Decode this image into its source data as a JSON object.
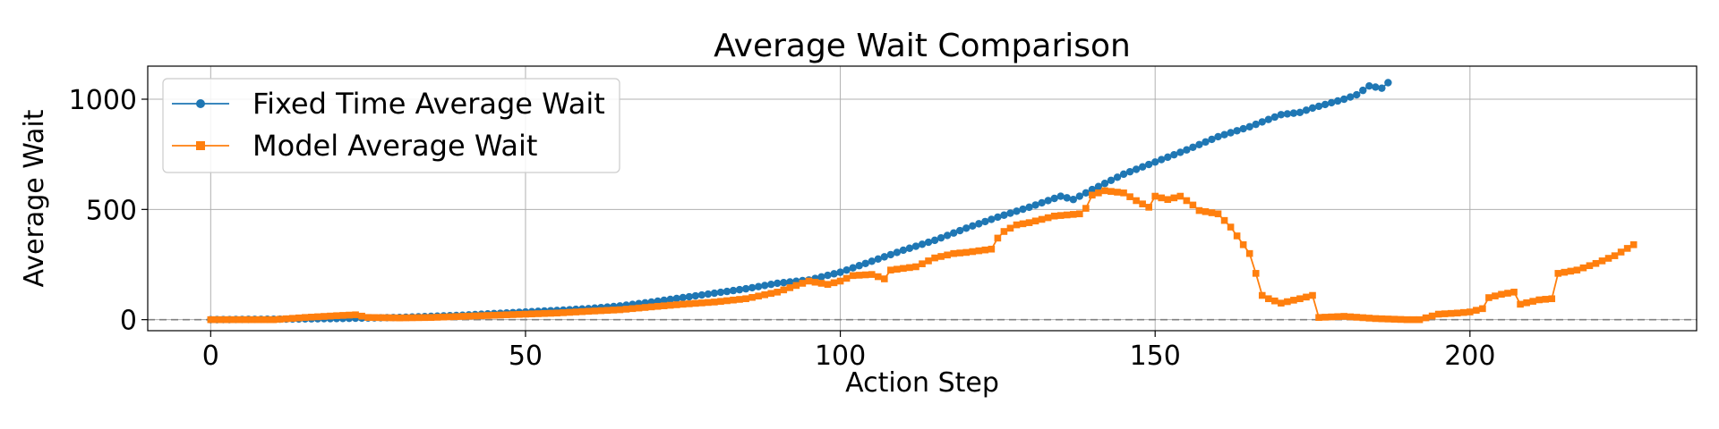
{
  "chart_data": {
    "type": "line",
    "title": "Average Wait Comparison",
    "xlabel": "Action Step",
    "ylabel": "Average Wait",
    "xlim": [
      -10,
      236
    ],
    "ylim": [
      -50,
      1150
    ],
    "xticks": [
      0,
      50,
      100,
      150,
      200
    ],
    "yticks": [
      0,
      500,
      1000
    ],
    "grid": true,
    "legend_position": "top-left",
    "reference_line": {
      "y": 0,
      "style": "dashed",
      "color": "#808080"
    },
    "series": [
      {
        "name": "Fixed Time Average Wait",
        "color": "#1f77b4",
        "marker": "circle",
        "anchors": [
          [
            0,
            0
          ],
          [
            10,
            2
          ],
          [
            20,
            5
          ],
          [
            30,
            10
          ],
          [
            40,
            20
          ],
          [
            50,
            35
          ],
          [
            55,
            42
          ],
          [
            60,
            50
          ],
          [
            65,
            62
          ],
          [
            70,
            80
          ],
          [
            75,
            100
          ],
          [
            80,
            120
          ],
          [
            85,
            140
          ],
          [
            90,
            165
          ],
          [
            95,
            180
          ],
          [
            100,
            215
          ],
          [
            105,
            265
          ],
          [
            110,
            315
          ],
          [
            115,
            360
          ],
          [
            120,
            415
          ],
          [
            125,
            465
          ],
          [
            130,
            510
          ],
          [
            135,
            560
          ],
          [
            137,
            545
          ],
          [
            140,
            590
          ],
          [
            145,
            660
          ],
          [
            150,
            715
          ],
          [
            155,
            770
          ],
          [
            160,
            830
          ],
          [
            165,
            875
          ],
          [
            170,
            930
          ],
          [
            173,
            940
          ],
          [
            175,
            960
          ],
          [
            180,
            1000
          ],
          [
            182,
            1020
          ],
          [
            184,
            1060
          ],
          [
            186,
            1050
          ],
          [
            187,
            1075
          ]
        ]
      },
      {
        "name": "Model Average Wait",
        "color": "#ff7f0e",
        "marker": "square",
        "anchors": [
          [
            0,
            0
          ],
          [
            10,
            0
          ],
          [
            15,
            10
          ],
          [
            20,
            18
          ],
          [
            23,
            22
          ],
          [
            25,
            10
          ],
          [
            30,
            8
          ],
          [
            35,
            10
          ],
          [
            40,
            15
          ],
          [
            45,
            20
          ],
          [
            50,
            25
          ],
          [
            55,
            30
          ],
          [
            60,
            38
          ],
          [
            65,
            45
          ],
          [
            70,
            58
          ],
          [
            75,
            70
          ],
          [
            80,
            80
          ],
          [
            85,
            95
          ],
          [
            90,
            125
          ],
          [
            95,
            175
          ],
          [
            98,
            160
          ],
          [
            100,
            175
          ],
          [
            102,
            200
          ],
          [
            105,
            205
          ],
          [
            107,
            185
          ],
          [
            108,
            225
          ],
          [
            112,
            240
          ],
          [
            115,
            280
          ],
          [
            118,
            300
          ],
          [
            120,
            305
          ],
          [
            124,
            320
          ],
          [
            125,
            370
          ],
          [
            126,
            400
          ],
          [
            128,
            430
          ],
          [
            130,
            440
          ],
          [
            134,
            470
          ],
          [
            138,
            480
          ],
          [
            139,
            505
          ],
          [
            140,
            565
          ],
          [
            142,
            585
          ],
          [
            145,
            575
          ],
          [
            147,
            540
          ],
          [
            149,
            510
          ],
          [
            150,
            560
          ],
          [
            152,
            545
          ],
          [
            154,
            560
          ],
          [
            156,
            520
          ],
          [
            157,
            495
          ],
          [
            160,
            480
          ],
          [
            162,
            420
          ],
          [
            163,
            380
          ],
          [
            165,
            300
          ],
          [
            166,
            210
          ],
          [
            167,
            110
          ],
          [
            168,
            95
          ],
          [
            170,
            75
          ],
          [
            173,
            95
          ],
          [
            175,
            110
          ],
          [
            176,
            10
          ],
          [
            180,
            15
          ],
          [
            185,
            5
          ],
          [
            190,
            0
          ],
          [
            192,
            0
          ],
          [
            195,
            25
          ],
          [
            198,
            30
          ],
          [
            200,
            35
          ],
          [
            202,
            50
          ],
          [
            203,
            100
          ],
          [
            205,
            115
          ],
          [
            207,
            125
          ],
          [
            208,
            70
          ],
          [
            211,
            90
          ],
          [
            213,
            95
          ],
          [
            214,
            210
          ],
          [
            217,
            225
          ],
          [
            220,
            255
          ],
          [
            223,
            290
          ],
          [
            226,
            340
          ]
        ]
      }
    ]
  }
}
